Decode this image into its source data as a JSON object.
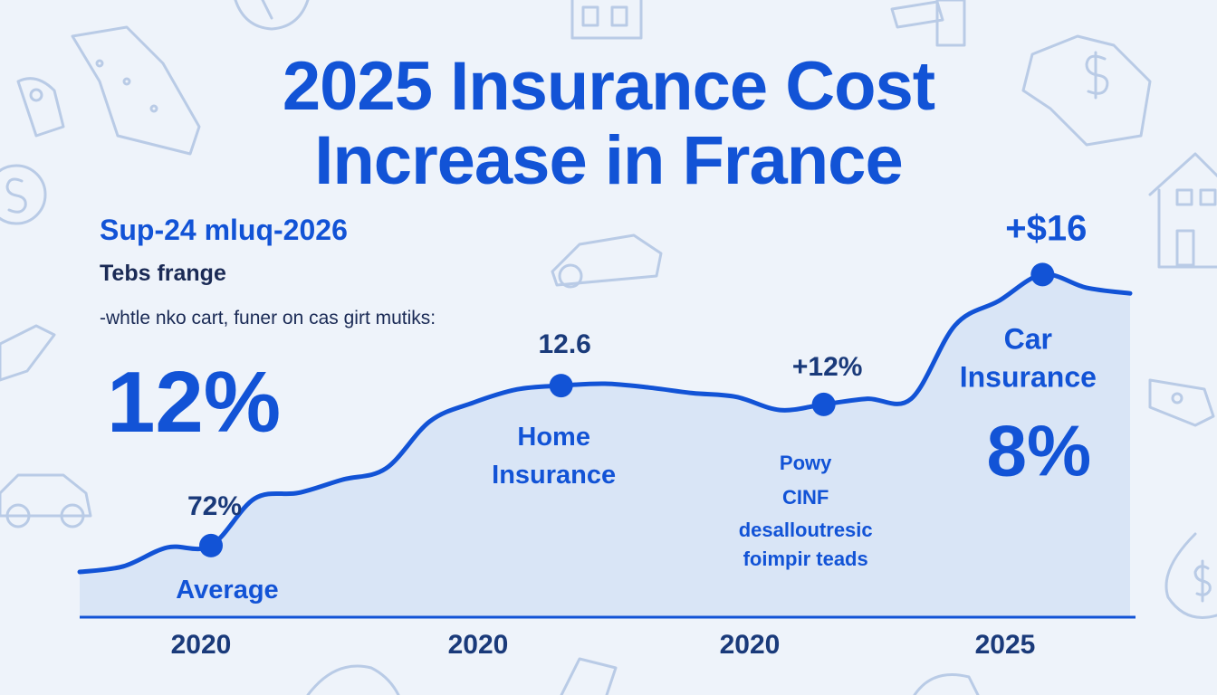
{
  "colors": {
    "accent": "#1253d6",
    "area_fill": "#d9e5f6",
    "background": "#eef3fa",
    "doodle": "#b9cbe6"
  },
  "header": {
    "title_line1": "2025 Insurance Cost",
    "title_line2": "Increase in France",
    "subtitle": "Sup-24 mluq-2026",
    "label": "Tebs frange",
    "note": "-whtle nko cart, funer on cas girt mutiks:",
    "big_value": "12%"
  },
  "icons": [
    "car-icon",
    "house-icon",
    "money-bag-icon",
    "dollar-coin-icon",
    "key-icon",
    "banknote-icon",
    "document-icon"
  ],
  "chart_data": {
    "type": "area",
    "title": "2025 Insurance Cost Increase in France",
    "x_tick_labels": [
      "2020",
      "2020",
      "2020",
      "2025"
    ],
    "y_axis_visible": false,
    "grid": false,
    "series": [
      {
        "values": [
          0,
          0.03,
          0.13,
          0.14,
          0.39,
          0.42,
          0.49,
          0.55,
          0.8,
          0.9,
          0.97,
          0.99,
          1.0,
          0.98,
          0.95,
          0.93,
          0.86,
          0.89,
          0.92,
          0.92,
          1.31,
          1.44,
          1.58,
          1.51,
          1.48
        ],
        "point_labels": [
          {
            "index": 3,
            "value_label": "72%",
            "category_label": "Average"
          },
          {
            "index": 11,
            "value_label": "12.6",
            "category_label": "Home Insurance"
          },
          {
            "index": 17,
            "value_label": "+12%",
            "category_label": "Powy CINF desalloutresic foimpir teads"
          },
          {
            "index": 22,
            "value_label": "+$16",
            "category_label": "Car Insurance",
            "extra_label": "8%"
          }
        ]
      }
    ]
  }
}
